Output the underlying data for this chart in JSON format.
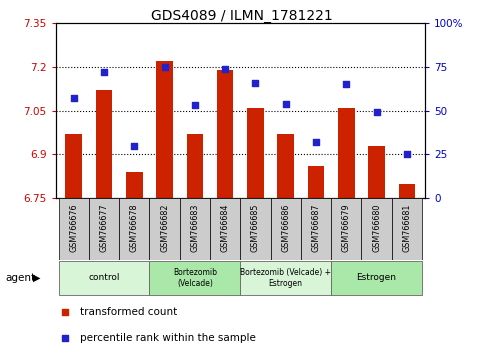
{
  "title": "GDS4089 / ILMN_1781221",
  "samples": [
    "GSM766676",
    "GSM766677",
    "GSM766678",
    "GSM766682",
    "GSM766683",
    "GSM766684",
    "GSM766685",
    "GSM766686",
    "GSM766687",
    "GSM766679",
    "GSM766680",
    "GSM766681"
  ],
  "transformed_count": [
    6.97,
    7.12,
    6.84,
    7.22,
    6.97,
    7.19,
    7.06,
    6.97,
    6.86,
    7.06,
    6.93,
    6.8
  ],
  "percentile_rank": [
    57,
    72,
    30,
    75,
    53,
    74,
    66,
    54,
    32,
    65,
    49,
    25
  ],
  "ylim_left": [
    6.75,
    7.35
  ],
  "ylim_right": [
    0,
    100
  ],
  "yticks_left": [
    6.75,
    6.9,
    7.05,
    7.2,
    7.35
  ],
  "yticks_right": [
    0,
    25,
    50,
    75,
    100
  ],
  "ytick_labels_left": [
    "6.75",
    "6.9",
    "7.05",
    "7.2",
    "7.35"
  ],
  "ytick_labels_right": [
    "0",
    "25",
    "50",
    "75",
    "100%"
  ],
  "bar_color": "#cc2200",
  "dot_color": "#2222cc",
  "bar_bottom": 6.75,
  "groups": [
    {
      "label": "control",
      "start": 0,
      "end": 3,
      "color": "#d8f5d8"
    },
    {
      "label": "Bortezomib\n(Velcade)",
      "start": 3,
      "end": 6,
      "color": "#aae8aa"
    },
    {
      "label": "Bortezomib (Velcade) +\nEstrogen",
      "start": 6,
      "end": 9,
      "color": "#d8f5d8"
    },
    {
      "label": "Estrogen",
      "start": 9,
      "end": 12,
      "color": "#aae8aa"
    }
  ],
  "grid_dotted_at": [
    6.9,
    7.05,
    7.2
  ],
  "legend_items": [
    {
      "color": "#cc2200",
      "label": "transformed count"
    },
    {
      "color": "#2222cc",
      "label": "percentile rank within the sample"
    }
  ],
  "agent_label": "agent",
  "left_color": "#cc0000",
  "right_color": "#0000cc",
  "sample_label_bg": "#cccccc",
  "group_border_color": "#666666",
  "bar_width": 0.55
}
